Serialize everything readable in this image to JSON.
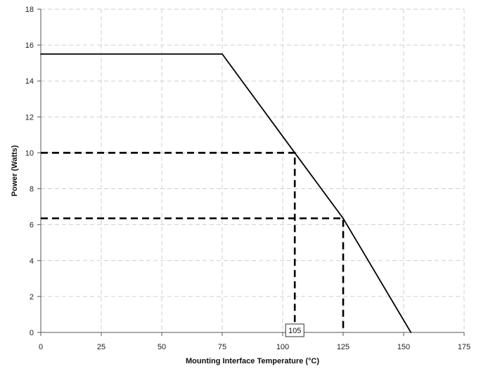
{
  "colors": {
    "background": "#ffffff",
    "grid": "#cfcfcf",
    "axis": "#555555",
    "series": "#000000",
    "guides": "#000000"
  },
  "chart_data": {
    "type": "line",
    "title": "",
    "xlabel": "Mounting Interface Temperature (°C)",
    "ylabel": "Power (Watts)",
    "xlim": [
      0,
      175
    ],
    "ylim": [
      0,
      18
    ],
    "xticks": [
      0,
      25,
      50,
      75,
      100,
      125,
      150,
      175
    ],
    "yticks": [
      0,
      2,
      4,
      6,
      8,
      10,
      12,
      14,
      16,
      18
    ],
    "grid": true,
    "grid_style": "dashed",
    "legend": "none",
    "series": [
      {
        "style": "solid",
        "points": [
          [
            0,
            15.5
          ],
          [
            75,
            15.5
          ],
          [
            105,
            10.0
          ],
          [
            125,
            6.35
          ],
          [
            153,
            0
          ]
        ]
      }
    ],
    "guides": [
      {
        "style": "dashed",
        "points": [
          [
            0,
            10.0
          ],
          [
            105,
            10.0
          ],
          [
            105,
            0
          ]
        ]
      },
      {
        "style": "dashed",
        "points": [
          [
            0,
            6.35
          ],
          [
            125,
            6.35
          ],
          [
            125,
            0
          ]
        ]
      }
    ],
    "annotations": [
      {
        "text": "105",
        "x": 105,
        "y": 0
      }
    ]
  }
}
